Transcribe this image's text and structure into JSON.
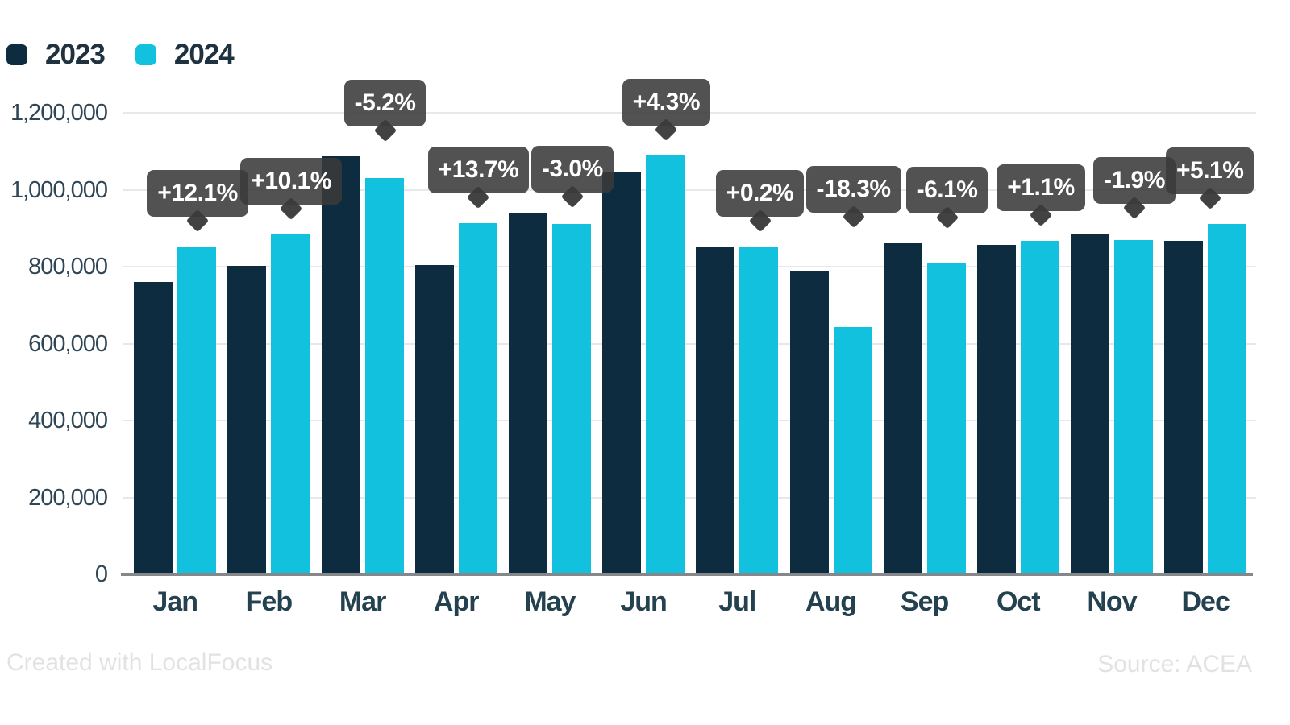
{
  "chart_data": {
    "type": "bar",
    "title": "",
    "xlabel": "",
    "ylabel": "",
    "categories": [
      "Jan",
      "Feb",
      "Mar",
      "Apr",
      "May",
      "Jun",
      "Jul",
      "Aug",
      "Sep",
      "Oct",
      "Nov",
      "Dec"
    ],
    "series": [
      {
        "name": "2023",
        "color": "#0d2c3f",
        "values": [
          760000,
          802500,
          1088000,
          804000,
          940000,
          1045000,
          850500,
          788000,
          861500,
          857000,
          886500,
          866500
        ]
      },
      {
        "name": "2024",
        "color": "#12c1dd",
        "values": [
          851500,
          883500,
          1031500,
          914000,
          911500,
          1090000,
          852000,
          644000,
          809000,
          866500,
          869500,
          910500
        ]
      }
    ],
    "change_labels": [
      "+12.1%",
      "+10.1%",
      "-5.2%",
      "+13.7%",
      "-3.0%",
      "+4.3%",
      "+0.2%",
      "-18.3%",
      "-6.1%",
      "+1.1%",
      "-1.9%",
      "+5.1%"
    ],
    "ylim": [
      0,
      1200000
    ],
    "ytick_labels": [
      "0",
      "200,000",
      "400,000",
      "600,000",
      "800,000",
      "1,000,000",
      "1,200,000"
    ],
    "grid": true,
    "legend_position": "top-left"
  },
  "colors": {
    "bar_2023": "#0d2c3f",
    "bar_2024": "#12c1dd",
    "tooltip_bg": "#4f4f4f",
    "tooltip_text": "#ffffff",
    "gridline": "#e8e8e8",
    "axis_line": "#85888a",
    "axis_text": "#2f4656",
    "month_text": "#24414f",
    "footer_text": "#e2e2e2"
  },
  "footer": {
    "credit": "Created with LocalFocus",
    "source": "Source: ACEA"
  }
}
